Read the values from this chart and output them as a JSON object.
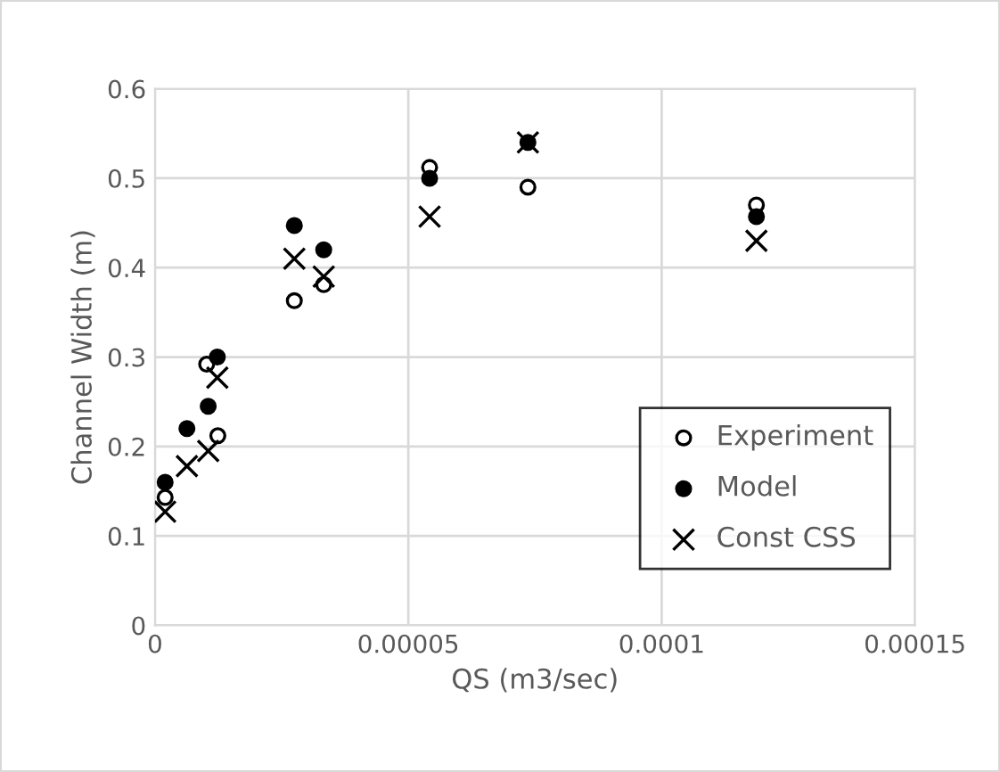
{
  "chart_data": {
    "type": "scatter",
    "xlabel": "QS (m3/sec)",
    "ylabel": "Channel Width (m)",
    "xlim": [
      0,
      0.00015
    ],
    "xticks": [
      0,
      {
        "value": 5e-05,
        "label": "0.00005"
      },
      {
        "value": 0.0001,
        "label": "0.0001"
      },
      {
        "value": 0.00015,
        "label": "0.00015"
      }
    ],
    "ylim": [
      0,
      0.6
    ],
    "yticks": [
      0,
      0.1,
      0.2,
      0.3,
      0.4,
      0.5,
      0.6
    ],
    "grid": true,
    "legend": "bottom right",
    "series": [
      {
        "name": "Experiment",
        "color": "#ffffff",
        "marker": "circle",
        "x": [
          2e-06,
          1.02e-05,
          1.24e-05,
          2.75e-05,
          3.33e-05,
          5.42e-05,
          7.36e-05,
          0.0001187
        ],
        "values": [
          0.143,
          0.292,
          0.212,
          0.363,
          0.381,
          0.512,
          0.49,
          0.47
        ]
      },
      {
        "name": "Model",
        "color": "#000000",
        "marker": "circle",
        "x": [
          2e-06,
          6.3e-06,
          1.05e-05,
          1.23e-05,
          2.75e-05,
          3.33e-05,
          5.42e-05,
          7.36e-05,
          0.0001187
        ],
        "values": [
          0.16,
          0.22,
          0.245,
          0.3,
          0.447,
          0.42,
          0.5,
          0.54,
          0.457
        ]
      },
      {
        "name": "Const CSS",
        "color": "#000000",
        "marker": "cross",
        "x": [
          2e-06,
          6.3e-06,
          1.05e-05,
          1.23e-05,
          2.75e-05,
          3.33e-05,
          5.42e-05,
          7.36e-05,
          0.0001187
        ],
        "values": [
          0.127,
          0.178,
          0.195,
          0.277,
          0.41,
          0.39,
          0.457,
          0.54,
          0.43
        ]
      }
    ]
  }
}
